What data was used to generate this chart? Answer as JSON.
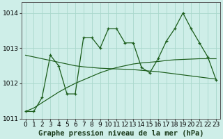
{
  "title": "Graphe pression niveau de la mer (hPa)",
  "background_color": "#ceeee8",
  "grid_color": "#aad8cc",
  "line_color": "#1a5c1a",
  "x": [
    0,
    1,
    2,
    3,
    4,
    5,
    6,
    7,
    8,
    9,
    10,
    11,
    12,
    13,
    14,
    15,
    16,
    17,
    18,
    19,
    20,
    21,
    22,
    23
  ],
  "y_main": [
    1011.2,
    1011.2,
    1011.6,
    1012.8,
    1012.5,
    1011.7,
    1011.7,
    1013.3,
    1013.3,
    1013.0,
    1013.55,
    1013.55,
    1013.15,
    1013.15,
    1012.45,
    1012.3,
    1012.7,
    1013.2,
    1013.55,
    1014.0,
    1013.55,
    1013.15,
    1012.75,
    1012.1
  ],
  "y_trend1": [
    1012.8,
    1012.75,
    1012.7,
    1012.65,
    1012.6,
    1012.55,
    1012.5,
    1012.47,
    1012.45,
    1012.43,
    1012.42,
    1012.41,
    1012.4,
    1012.39,
    1012.37,
    1012.35,
    1012.33,
    1012.3,
    1012.27,
    1012.24,
    1012.21,
    1012.18,
    1012.15,
    1012.12
  ],
  "y_trend2": [
    1011.2,
    1011.3,
    1011.45,
    1011.6,
    1011.75,
    1011.88,
    1012.0,
    1012.1,
    1012.2,
    1012.3,
    1012.38,
    1012.45,
    1012.5,
    1012.55,
    1012.58,
    1012.6,
    1012.62,
    1012.65,
    1012.67,
    1012.68,
    1012.69,
    1012.7,
    1012.7,
    1012.7
  ],
  "ylim": [
    1011.0,
    1014.3
  ],
  "yticks": [
    1011,
    1012,
    1013,
    1014
  ],
  "xlim": [
    -0.5,
    23.5
  ],
  "xticks": [
    0,
    1,
    2,
    3,
    4,
    5,
    6,
    7,
    8,
    9,
    10,
    11,
    12,
    13,
    14,
    15,
    16,
    17,
    18,
    19,
    20,
    21,
    22,
    23
  ],
  "xlabel_fontsize": 7.5,
  "tick_fontsize": 6.5
}
